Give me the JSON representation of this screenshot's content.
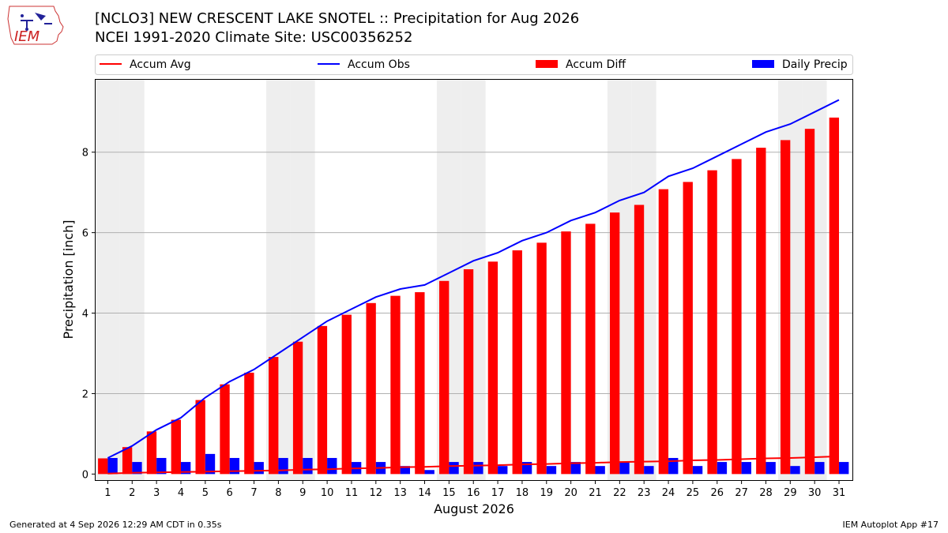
{
  "header": {
    "logo_text": "IEM",
    "title_line1": "[NCLO3] NEW CRESCENT LAKE SNOTEL :: Precipitation for Aug 2026",
    "title_line2": "NCEI 1991-2020 Climate Site: USC00356252"
  },
  "footer": {
    "generated": "Generated at 4 Sep 2026 12:29 AM CDT in 0.35s",
    "app": "IEM Autoplot App #17"
  },
  "colors": {
    "accum_avg": "#ff0000",
    "accum_obs": "#0000ff",
    "accum_diff": "#ff0000",
    "daily_precip": "#0000ff",
    "weekend_shade": "#eeeeee",
    "grid": "#b0b0b0"
  },
  "chart_data": {
    "type": "bar",
    "title": "[NCLO3] NEW CRESCENT LAKE SNOTEL :: Precipitation for Aug 2026",
    "subtitle": "NCEI 1991-2020 Climate Site: USC00356252",
    "xlabel": "August 2026",
    "ylabel": "Precipitation [inch]",
    "ylim": [
      -0.15,
      9.8
    ],
    "yticks": [
      0,
      2,
      4,
      6,
      8
    ],
    "grid": "horizontal",
    "legend_position": "top",
    "categories": [
      "1",
      "2",
      "3",
      "4",
      "5",
      "6",
      "7",
      "8",
      "9",
      "10",
      "11",
      "12",
      "13",
      "14",
      "15",
      "16",
      "17",
      "18",
      "19",
      "20",
      "21",
      "22",
      "23",
      "24",
      "25",
      "26",
      "27",
      "28",
      "29",
      "30",
      "31"
    ],
    "shaded_days": [
      1,
      2,
      8,
      9,
      15,
      16,
      22,
      23,
      29,
      30
    ],
    "series": [
      {
        "name": "Accum Avg",
        "kind": "line",
        "values": [
          0.01,
          0.03,
          0.04,
          0.05,
          0.06,
          0.07,
          0.08,
          0.09,
          0.11,
          0.12,
          0.14,
          0.15,
          0.17,
          0.18,
          0.2,
          0.21,
          0.22,
          0.24,
          0.25,
          0.27,
          0.28,
          0.3,
          0.31,
          0.32,
          0.34,
          0.35,
          0.37,
          0.39,
          0.4,
          0.42,
          0.44
        ]
      },
      {
        "name": "Accum Obs",
        "kind": "line",
        "values": [
          0.4,
          0.7,
          1.1,
          1.4,
          1.9,
          2.3,
          2.6,
          3.0,
          3.4,
          3.8,
          4.1,
          4.4,
          4.6,
          4.7,
          5.0,
          5.3,
          5.5,
          5.8,
          6.0,
          6.3,
          6.5,
          6.8,
          7.0,
          7.4,
          7.6,
          7.9,
          8.2,
          8.5,
          8.7,
          9.0,
          9.3
        ]
      },
      {
        "name": "Accum Diff",
        "kind": "bar",
        "values": [
          0.39,
          0.67,
          1.06,
          1.35,
          1.84,
          2.23,
          2.52,
          2.91,
          3.29,
          3.68,
          3.96,
          4.25,
          4.43,
          4.52,
          4.8,
          5.09,
          5.28,
          5.56,
          5.75,
          6.03,
          6.22,
          6.5,
          6.69,
          7.08,
          7.26,
          7.55,
          7.83,
          8.11,
          8.3,
          8.58,
          8.86
        ]
      },
      {
        "name": "Daily Precip",
        "kind": "bar",
        "values": [
          0.4,
          0.3,
          0.4,
          0.3,
          0.5,
          0.4,
          0.3,
          0.4,
          0.4,
          0.4,
          0.3,
          0.3,
          0.2,
          0.1,
          0.3,
          0.3,
          0.2,
          0.3,
          0.2,
          0.3,
          0.2,
          0.3,
          0.2,
          0.4,
          0.2,
          0.3,
          0.3,
          0.3,
          0.2,
          0.3,
          0.3
        ]
      }
    ]
  }
}
